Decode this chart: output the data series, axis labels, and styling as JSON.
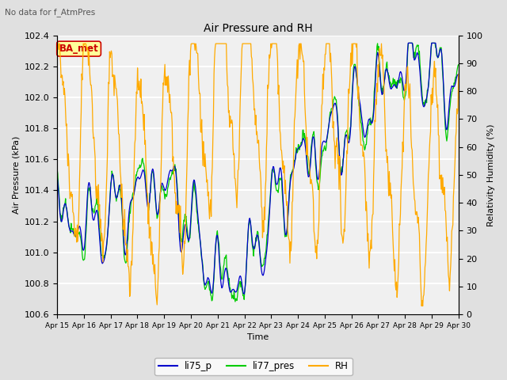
{
  "title": "Air Pressure and RH",
  "subtitle": "No data for f_AtmPres",
  "xlabel": "Time",
  "ylabel_left": "Air Pressure (kPa)",
  "ylabel_right": "Relativity Humidity (%)",
  "ylim_left": [
    100.6,
    102.4
  ],
  "ylim_right": [
    0,
    100
  ],
  "yticks_left": [
    100.6,
    100.8,
    101.0,
    101.2,
    101.4,
    101.6,
    101.8,
    102.0,
    102.2,
    102.4
  ],
  "yticks_right": [
    0,
    10,
    20,
    30,
    40,
    50,
    60,
    70,
    80,
    90,
    100
  ],
  "background_color": "#e0e0e0",
  "plot_bg_color": "#f0f0f0",
  "legend_labels": [
    "li75_p",
    "li77_pres",
    "RH"
  ],
  "color_li75": "#0000cc",
  "color_li77": "#00cc00",
  "color_rh": "#ffaa00",
  "annotation_text": "BA_met",
  "annotation_facecolor": "#ffff99",
  "annotation_edgecolor": "#cc0000"
}
